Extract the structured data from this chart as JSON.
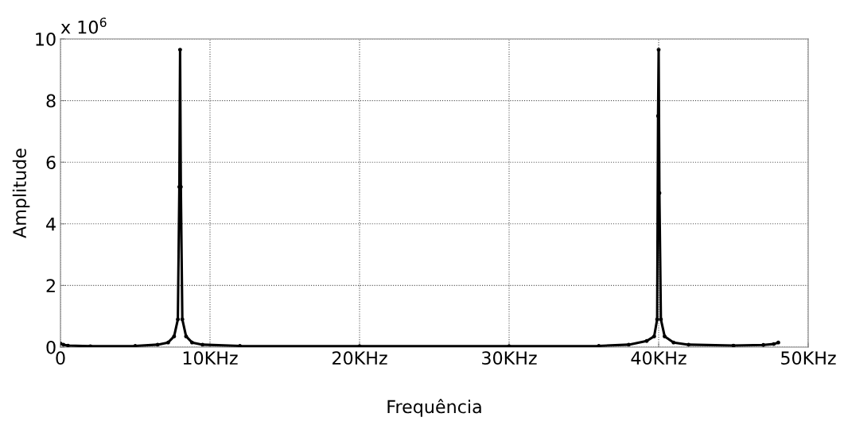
{
  "chart_data": {
    "type": "line",
    "xlabel": "Frequência",
    "ylabel": "Amplitude",
    "x": [
      0,
      0.2,
      0.5,
      2,
      5,
      6.5,
      7.2,
      7.6,
      7.85,
      7.95,
      8.0,
      8.05,
      8.15,
      8.4,
      8.8,
      9.5,
      12,
      20,
      30,
      36,
      38,
      39.2,
      39.7,
      39.9,
      39.96,
      40,
      40.05,
      40.15,
      40.4,
      41,
      42,
      45,
      47,
      47.7,
      48
    ],
    "series": [
      {
        "color": "#000000",
        "values": [
          0.12,
          0.08,
          0.05,
          0.03,
          0.04,
          0.08,
          0.15,
          0.35,
          0.9,
          5.2,
          9.65,
          5.2,
          0.9,
          0.35,
          0.15,
          0.08,
          0.04,
          0.03,
          0.03,
          0.04,
          0.08,
          0.2,
          0.35,
          0.9,
          7.5,
          9.65,
          5.0,
          0.9,
          0.35,
          0.15,
          0.08,
          0.05,
          0.07,
          0.1,
          0.15
        ]
      }
    ],
    "xlim": [
      0,
      50
    ],
    "xticks": [
      0,
      {
        "value": 10,
        "label": "10KHz"
      },
      {
        "value": 20,
        "label": "20KHz"
      },
      {
        "value": 30,
        "label": "30KHz"
      },
      {
        "value": 40,
        "label": "40KHz"
      },
      {
        "value": 50,
        "label": "50KHz"
      }
    ],
    "ylim": [
      0,
      10
    ],
    "yticks": [
      0,
      2,
      4,
      6,
      8,
      10
    ],
    "annotations": [
      "x 10$^{6}$"
    ],
    "grid": true,
    "marker": "circle",
    "line_style": "solid",
    "legend": false
  }
}
